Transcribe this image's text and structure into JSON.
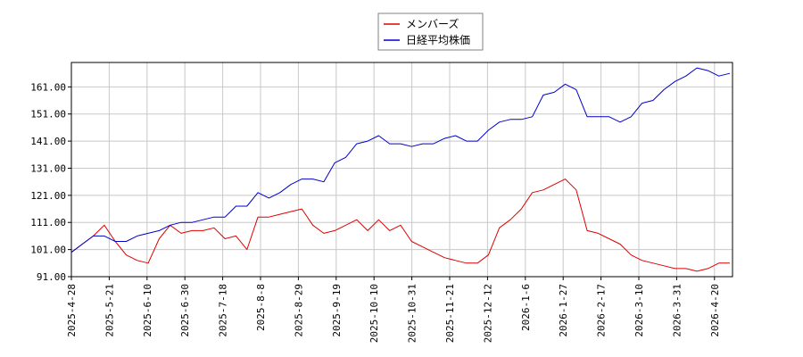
{
  "chart_data": {
    "type": "line",
    "grid": true,
    "legend_position": "top-center",
    "ylim": [
      91.0,
      170.0
    ],
    "y_ticks": [
      "91.00",
      "101.00",
      "111.00",
      "121.00",
      "131.00",
      "141.00",
      "151.00",
      "161.00"
    ],
    "x_ticks": [
      "2025-4-28",
      "2025-5-21",
      "2025-6-10",
      "2025-6-30",
      "2025-7-18",
      "2025-8-8",
      "2025-8-29",
      "2025-9-19",
      "2025-10-10",
      "2025-10-31",
      "2025-11-21",
      "2025-12-12",
      "2026-1-6",
      "2026-1-27",
      "2026-2-17",
      "2026-3-10",
      "2026-3-31",
      "2026-4-20"
    ],
    "series": [
      {
        "name": "メンバーズ",
        "color": "#dd0000",
        "values": [
          100,
          103,
          106,
          110,
          104,
          99,
          97,
          96,
          105,
          110,
          107,
          108,
          108,
          109,
          105,
          106,
          101,
          113,
          113,
          114,
          115,
          116,
          110,
          107,
          108,
          110,
          112,
          108,
          112,
          108,
          110,
          104,
          102,
          100,
          98,
          97,
          96,
          96,
          99,
          109,
          112,
          116,
          122,
          123,
          125,
          127,
          123,
          108,
          107,
          105,
          103,
          99,
          97,
          96,
          95,
          94,
          94,
          93,
          94,
          96,
          96
        ]
      },
      {
        "name": "日経平均株価",
        "color": "#0000cc",
        "values": [
          100,
          103,
          106,
          106,
          104,
          104,
          106,
          107,
          108,
          110,
          111,
          111,
          112,
          113,
          113,
          117,
          117,
          122,
          120,
          122,
          125,
          127,
          127,
          126,
          133,
          135,
          140,
          141,
          143,
          140,
          140,
          139,
          140,
          140,
          142,
          143,
          141,
          141,
          145,
          148,
          149,
          149,
          150,
          158,
          159,
          162,
          160,
          150,
          150,
          150,
          148,
          150,
          155,
          156,
          160,
          163,
          165,
          168,
          167,
          165,
          166
        ]
      }
    ]
  }
}
